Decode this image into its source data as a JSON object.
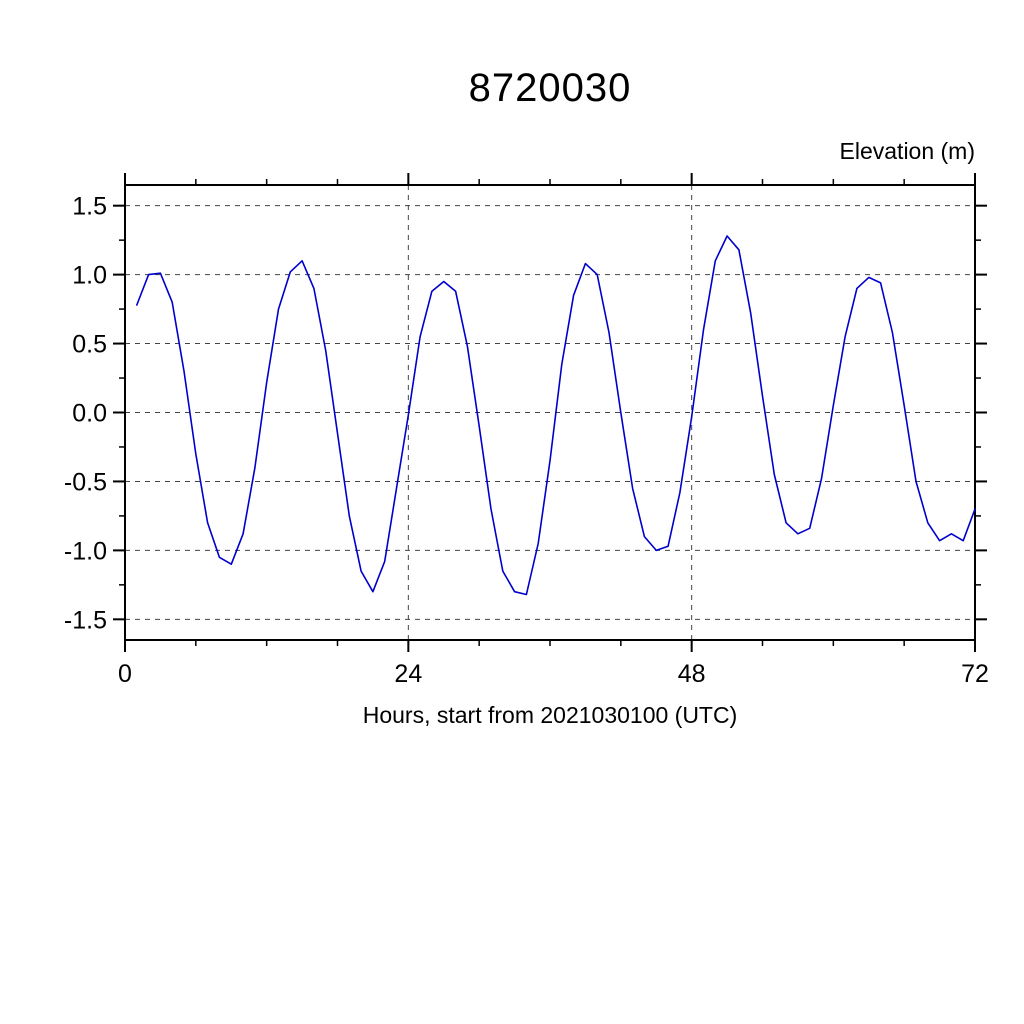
{
  "chart_data": {
    "type": "line",
    "title": "8720030",
    "corner_label": "Elevation (m)",
    "xlabel": "Hours, start from 2021030100 (UTC)",
    "xlim": [
      0,
      72
    ],
    "ylim": [
      -1.65,
      1.65
    ],
    "grid": "dashed",
    "legend_position": "none",
    "line_color": "#0000cc",
    "axis_color": "#000000",
    "grid_color": "#444444",
    "x_ticks": {
      "values": [
        0,
        24,
        48,
        72
      ],
      "labels": [
        "0",
        "24",
        "48",
        "72"
      ]
    },
    "x_minor_step": 6,
    "y_ticks": {
      "values": [
        1.5,
        1.0,
        0.5,
        0.0,
        -0.5,
        -1.0,
        -1.5
      ],
      "labels": [
        "1.5",
        "1.0",
        "0.5",
        "0.0",
        "-0.5",
        "-1.0",
        "-1.5"
      ]
    },
    "y_minor_step": 0.25,
    "x_gridlines": [
      24,
      48
    ],
    "y_gridlines": [
      1.5,
      1.0,
      0.5,
      0.0,
      -0.5,
      -1.0,
      -1.5
    ],
    "series": [
      {
        "name": "elevation",
        "x": [
          1,
          2,
          3,
          4,
          5,
          6,
          7,
          8,
          9,
          10,
          11,
          12,
          13,
          14,
          15,
          16,
          17,
          18,
          19,
          20,
          21,
          22,
          23,
          24,
          25,
          26,
          27,
          28,
          29,
          30,
          31,
          32,
          33,
          34,
          35,
          36,
          37,
          38,
          39,
          40,
          41,
          42,
          43,
          44,
          45,
          46,
          47,
          48,
          49,
          50,
          51,
          52,
          53,
          54,
          55,
          56,
          57,
          58,
          59,
          60,
          61,
          62,
          63,
          64,
          65,
          66,
          67,
          68,
          69,
          70,
          71,
          72
        ],
        "y": [
          0.78,
          1.0,
          1.01,
          0.8,
          0.3,
          -0.3,
          -0.8,
          -1.05,
          -1.1,
          -0.88,
          -0.4,
          0.22,
          0.75,
          1.02,
          1.1,
          0.9,
          0.45,
          -0.15,
          -0.75,
          -1.15,
          -1.3,
          -1.08,
          -0.55,
          -0.02,
          0.55,
          0.88,
          0.95,
          0.88,
          0.48,
          -0.1,
          -0.7,
          -1.15,
          -1.3,
          -1.32,
          -0.95,
          -0.35,
          0.35,
          0.85,
          1.08,
          1.0,
          0.58,
          0.0,
          -0.55,
          -0.9,
          -1.0,
          -0.97,
          -0.58,
          -0.03,
          0.6,
          1.1,
          1.28,
          1.18,
          0.72,
          0.12,
          -0.45,
          -0.8,
          -0.88,
          -0.84,
          -0.48,
          0.05,
          0.55,
          0.9,
          0.98,
          0.94,
          0.58,
          0.05,
          -0.5,
          -0.8,
          -0.93,
          -0.88,
          -0.93,
          -0.7
        ]
      }
    ]
  }
}
